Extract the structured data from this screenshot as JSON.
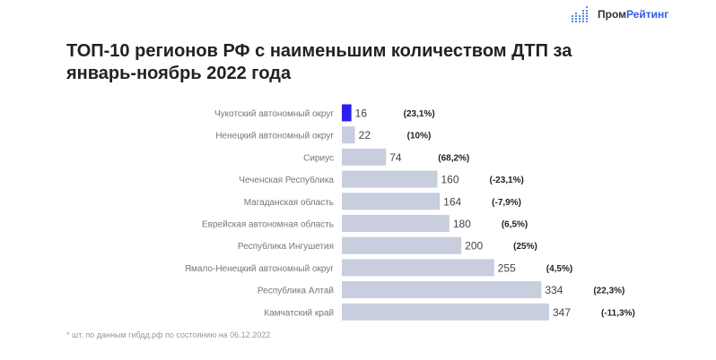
{
  "logo": {
    "part1": "Пром",
    "part2": "Рейтинг"
  },
  "chart_data": {
    "type": "bar",
    "orientation": "horizontal",
    "title": "ТОП-10 регионов РФ с наименьшим количеством ДТП за январь-ноябрь 2022 года",
    "categories": [
      "Чукотский автономный округ",
      "Ненецкий автономный округ",
      "Сириус",
      "Чеченская Республика",
      "Магаданская область",
      "Еврейская автономная область",
      "Республика Ингушетия",
      "Ямало-Ненецкий автономный округ",
      "Республика Алтай",
      "Камчатский край"
    ],
    "values": [
      16,
      22,
      74,
      160,
      164,
      180,
      200,
      255,
      334,
      347
    ],
    "value_labels": [
      "16",
      "22",
      "74",
      "160",
      "164",
      "180",
      "200",
      "255",
      "334",
      "347"
    ],
    "change_labels": [
      "(23,1%)",
      "(10%)",
      "(68,2%)",
      "(-23,1%)",
      "(-7,9%)",
      "(6,5%)",
      "(25%)",
      "(4,5%)",
      "(22,3%)",
      "(-11,3%)"
    ],
    "highlight_index": 0,
    "colors": {
      "highlight": "#2d1ef0",
      "bar": "#c8cedd"
    }
  },
  "footnote": "* шт. по данным гибдд.рф по состоянию на 06.12.2022"
}
